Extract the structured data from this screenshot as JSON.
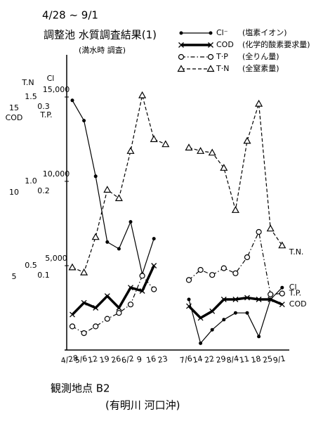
{
  "chart_data": {
    "type": "line",
    "date_range": "4/28 ~ 9/1",
    "title": "調整池 水質調査結果(1)",
    "subtitle": "(満水時 調査)",
    "note": [
      "観測地点 B2",
      "(有明川 河口沖)"
    ],
    "categories": [
      "4/28",
      "5/6",
      "12",
      "19",
      "26",
      "6/2",
      "9",
      "16",
      "23",
      null,
      "7/6",
      "14",
      "22",
      "29",
      "8/4",
      "11",
      "18",
      "25",
      "9/1"
    ],
    "axes": [
      {
        "name": "T.N",
        "ylim": [
          0,
          1.75
        ],
        "yticks": [
          0.5,
          {
            "value": 1,
            "label": "1.0"
          },
          1.5
        ]
      },
      {
        "name": "Cl",
        "ylim": [
          0,
          17500
        ],
        "yticks": [
          {
            "value": 5000,
            "label": "5,000"
          },
          {
            "value": 10000,
            "label": "10,000"
          },
          {
            "value": 15000,
            "label": "15,000"
          }
        ]
      },
      {
        "name": "T.P.",
        "ylim": [
          0,
          0.35
        ],
        "yticks": [
          0.1,
          0.2,
          0.3
        ]
      },
      {
        "name": "COD",
        "ylim": [
          0,
          17.5
        ],
        "yticks": [
          5,
          10,
          15
        ]
      }
    ],
    "series": [
      {
        "name": "Cl⁻",
        "description": "(塩素イオン)",
        "end_label": "Cl",
        "axis": 1,
        "color": "#000000",
        "marker": "dot",
        "dash": "solid",
        "width": 1.2,
        "values": [
          14800,
          13600,
          10300,
          6400,
          6000,
          7600,
          4500,
          6600,
          null,
          null,
          3000,
          400,
          1200,
          1800,
          2200,
          2200,
          800,
          3000,
          3700
        ]
      },
      {
        "name": "COD",
        "description": "(化学的酸素要求量)",
        "end_label": "COD",
        "axis": 3,
        "color": "#000000",
        "marker": "x",
        "dash": "solid",
        "width": 3.5,
        "values": [
          2.1,
          2.8,
          2.5,
          3.2,
          2.5,
          3.7,
          3.5,
          5.0,
          null,
          null,
          2.6,
          1.9,
          2.3,
          3.0,
          3.0,
          3.1,
          3.0,
          3.0,
          2.7
        ]
      },
      {
        "name": "T·P",
        "description": "(全りん量)",
        "end_label": "T.P.",
        "axis": 2,
        "color": "#000000",
        "marker": "circle",
        "dash": "dashdot",
        "width": 1.2,
        "values": [
          0.028,
          0.02,
          0.028,
          0.037,
          0.044,
          0.054,
          0.088,
          0.072,
          null,
          null,
          0.083,
          0.095,
          0.089,
          0.097,
          0.091,
          0.11,
          0.14,
          0.066,
          0.067
        ]
      },
      {
        "name": "T·N",
        "description": "(全窒素量)",
        "end_label": "T.N.",
        "axis": 0,
        "color": "#000000",
        "marker": "triangle",
        "dash": "dashed",
        "width": 1.2,
        "values": [
          0.49,
          0.46,
          0.67,
          0.95,
          0.9,
          1.18,
          1.51,
          1.25,
          1.22,
          null,
          1.2,
          1.18,
          1.17,
          1.08,
          0.83,
          1.24,
          1.46,
          0.72,
          0.62
        ]
      }
    ]
  }
}
